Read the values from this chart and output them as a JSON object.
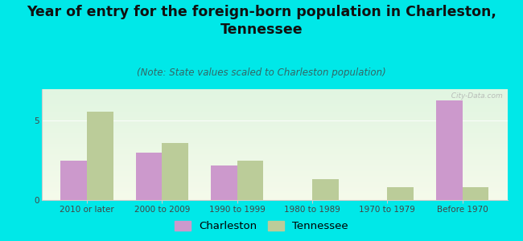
{
  "title": "Year of entry for the foreign-born population in Charleston,\nTennessee",
  "subtitle": "(Note: State values scaled to Charleston population)",
  "categories": [
    "2010 or later",
    "2000 to 2009",
    "1990 to 1999",
    "1980 to 1989",
    "1970 to 1979",
    "Before 1970"
  ],
  "charleston_values": [
    2.5,
    3.0,
    2.2,
    0,
    0,
    6.3
  ],
  "tennessee_values": [
    5.6,
    3.6,
    2.5,
    1.3,
    0.8,
    0.8
  ],
  "charleston_color": "#cc99cc",
  "tennessee_color": "#bbcc99",
  "background_outer": "#00e8e8",
  "ylim": [
    0,
    7
  ],
  "yticks": [
    0,
    5
  ],
  "bar_width": 0.35,
  "title_fontsize": 12.5,
  "subtitle_fontsize": 8.5,
  "tick_fontsize": 7.5,
  "legend_fontsize": 9.5,
  "watermark": "  City-Data.com"
}
